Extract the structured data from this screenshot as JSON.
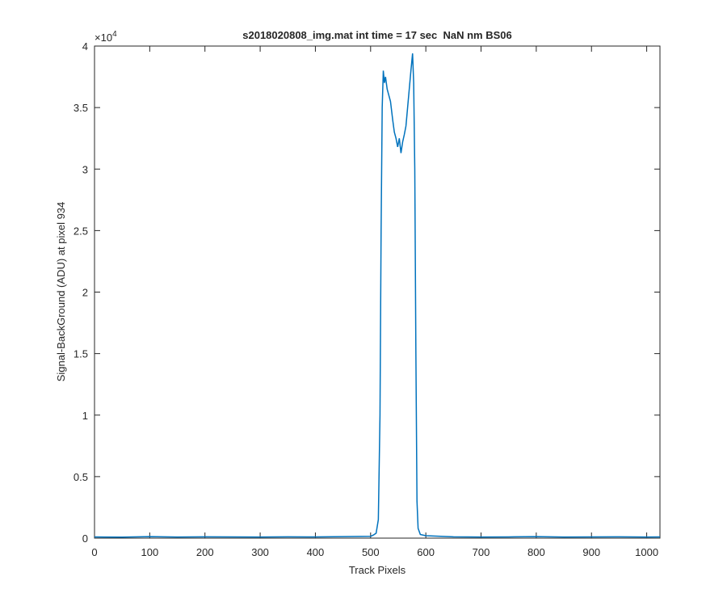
{
  "chart_data": {
    "type": "line",
    "title": "s2018020808_img.mat int time = 17 sec  NaN nm BS06",
    "x_label": "Track Pixels",
    "y_label": "Signal-BackGround (ADU) at pixel 934",
    "y_multiplier": {
      "base": "×10",
      "exponent": "4"
    },
    "x": [
      0,
      50,
      100,
      150,
      200,
      250,
      300,
      350,
      400,
      450,
      500,
      505,
      510,
      514,
      517,
      519,
      521,
      523,
      525,
      527,
      530,
      533,
      536,
      540,
      543,
      546,
      549,
      552,
      555,
      558,
      561,
      564,
      567,
      570,
      573,
      576,
      578,
      580,
      582,
      584,
      586,
      590,
      600,
      650,
      700,
      750,
      800,
      850,
      900,
      950,
      1000,
      1024
    ],
    "series": [
      {
        "color": "#0072bd",
        "values": [
          100,
          80,
          120,
          90,
          110,
          100,
          90,
          110,
          100,
          120,
          150,
          250,
          400,
          1500,
          10000,
          25000,
          35000,
          38000,
          37000,
          37500,
          36500,
          36000,
          35500,
          34000,
          33000,
          32500,
          31800,
          32500,
          31300,
          32200,
          32800,
          33500,
          35000,
          36500,
          38000,
          39400,
          37000,
          30000,
          15000,
          3000,
          800,
          300,
          200,
          110,
          90,
          100,
          120,
          90,
          100,
          110,
          90,
          100
        ]
      }
    ],
    "xlim": [
      0,
      1024
    ],
    "ylim": [
      0,
      40000
    ],
    "xticks": [
      0,
      100,
      200,
      300,
      400,
      500,
      600,
      700,
      800,
      900,
      1000
    ],
    "yticks": [
      {
        "value": 0,
        "label": "0"
      },
      {
        "value": 5000,
        "label": "0.5"
      },
      {
        "value": 10000,
        "label": "1"
      },
      {
        "value": 15000,
        "label": "1.5"
      },
      {
        "value": 20000,
        "label": "2"
      },
      {
        "value": 25000,
        "label": "2.5"
      },
      {
        "value": 30000,
        "label": "3"
      },
      {
        "value": 35000,
        "label": "3.5"
      },
      {
        "value": 40000,
        "label": "4"
      }
    ]
  }
}
